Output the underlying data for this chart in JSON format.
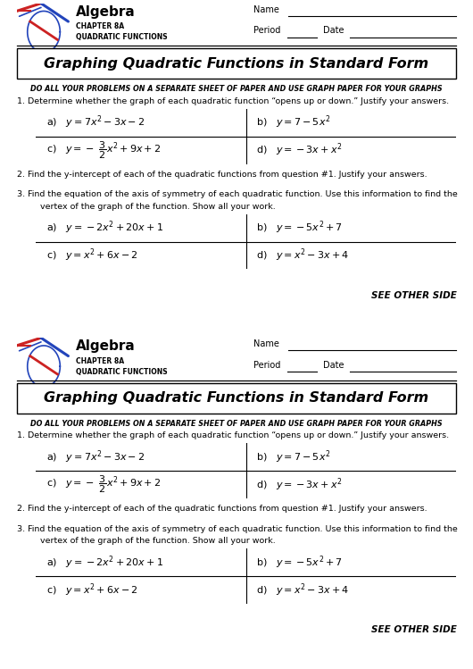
{
  "bg_color": "#ffffff",
  "header_algebra": "Algebra",
  "header_ch": "CHAPTER 8A",
  "header_qf": "QUADRATIC FUNCTIONS",
  "name_label": "Name",
  "period_label": "Period",
  "date_label": "Date",
  "title": "Graphing Quadratic Functions in Standard Form",
  "instruction": "DO ALL YOUR PROBLEMS ON A SEPARATE SHEET OF PAPER AND USE GRAPH PAPER FOR YOUR GRAPHS",
  "q1_label": "1. Determine whether the graph of each quadratic function “opens up or down.” Justify your answers.",
  "q2_label": "2. Find the y-intercept of each of the quadratic functions from question #1. Justify your answers.",
  "q3_label": "3. Find the equation of the axis of symmetry of each quadratic function. Use this information to find the",
  "q3_label2": "vertex of the graph of the function. Show all your work.",
  "see_other": "SEE OTHER SIDE",
  "q1_cells_top": [
    "a)   $y = 7x^2 - 3x- 2$",
    "b)   $y=7 - 5x^2$"
  ],
  "q1_cells_bot": [
    "c)   $y=-\\ \\dfrac{3}{2}x^2 + 9x+2$",
    "d)   $y=-3x + x^2$"
  ],
  "q3_cells_top": [
    "a)   $y = -2x^2 + 20x + 1$",
    "b)   $y = -5x^2 + 7$"
  ],
  "q3_cells_bot": [
    "c)   $y = x^2 + 6x- 2$",
    "d)   $y = x^2 - 3x + 4$"
  ]
}
